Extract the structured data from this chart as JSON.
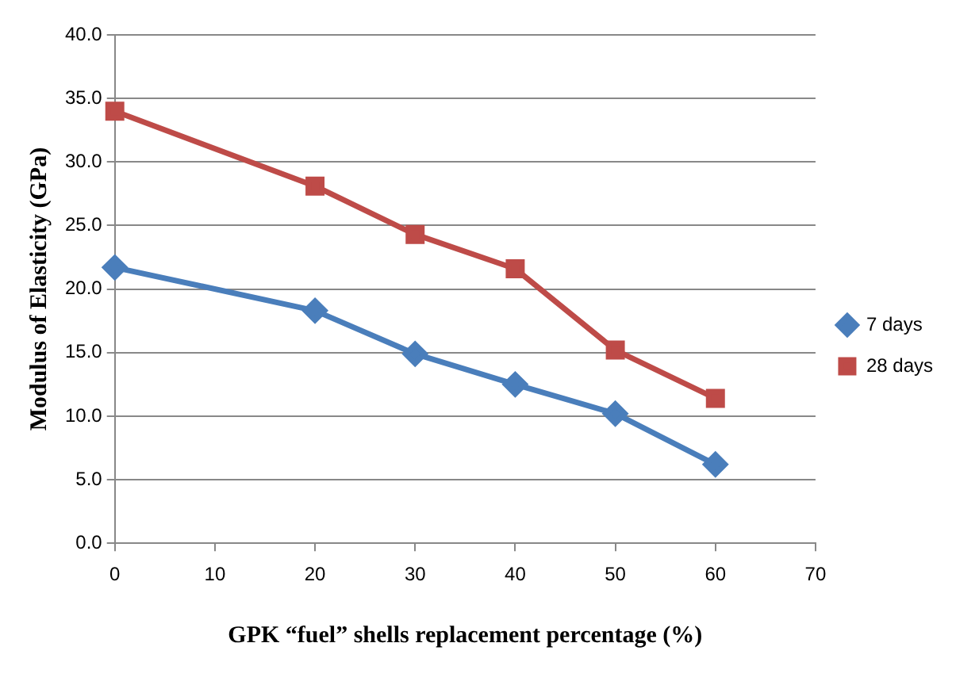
{
  "chart_data": {
    "type": "line",
    "xlabel": "GPK “fuel” shells replacement percentage (%)",
    "ylabel": "Modulus of Elasticity (GPa)",
    "x": [
      0,
      20,
      30,
      40,
      50,
      60
    ],
    "series": [
      {
        "name": "7 days",
        "color": "#4a7ebb",
        "marker": "diamond",
        "values": [
          21.7,
          18.3,
          14.9,
          12.5,
          10.2,
          6.2
        ]
      },
      {
        "name": "28 days",
        "color": "#be4b48",
        "marker": "square",
        "values": [
          34.0,
          28.1,
          24.3,
          21.6,
          15.2,
          11.4
        ]
      }
    ],
    "xlim": [
      0,
      70
    ],
    "xticks": [
      0,
      10,
      20,
      30,
      40,
      50,
      60,
      70
    ],
    "ylim": [
      0,
      40
    ],
    "yticks": [
      {
        "value": 0,
        "label": "0.0"
      },
      {
        "value": 5,
        "label": "5.0"
      },
      {
        "value": 10,
        "label": "10.0"
      },
      {
        "value": 15,
        "label": "15.0"
      },
      {
        "value": 20,
        "label": "20.0"
      },
      {
        "value": 25,
        "label": "25.0"
      },
      {
        "value": 30,
        "label": "30.0"
      },
      {
        "value": 35,
        "label": "35.0"
      },
      {
        "value": 40,
        "label": "40.0"
      }
    ],
    "grid": "y",
    "legend": "right",
    "line_style": "solid"
  }
}
